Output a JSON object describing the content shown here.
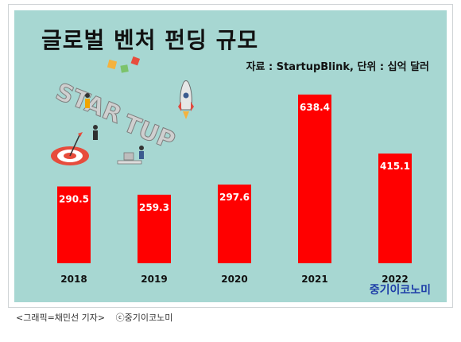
{
  "chart_data": {
    "type": "bar",
    "title": "글로벌 벤처 펀딩 규모",
    "subtitle": "자료 : StartupBlink, 단위 : 십억 달러",
    "categories": [
      "2018",
      "2019",
      "2020",
      "2021",
      "2022"
    ],
    "values": [
      290.5,
      259.3,
      297.6,
      638.4,
      415.1
    ],
    "data_labels": [
      "290.5",
      "259.3",
      "297.6",
      "638.4",
      "415.1"
    ],
    "xlabel": "",
    "ylabel": "",
    "ylim": [
      0,
      650
    ],
    "grid": false,
    "legend": "none",
    "colors": {
      "bar": "#ff0000",
      "background": "#a7d7d2",
      "label": "#ffffff"
    }
  },
  "brand": {
    "text": "중기이코노미",
    "color": "#1f3fa8"
  },
  "caption": {
    "credit": "<그래픽=채민선 기자>",
    "copyright": "ⓒ중기이코노미"
  },
  "illustration": {
    "icons": [
      "startup-3d-letters-icon",
      "rocket-icon",
      "target-icon",
      "people-icon"
    ],
    "lettering": "STARTUP"
  }
}
